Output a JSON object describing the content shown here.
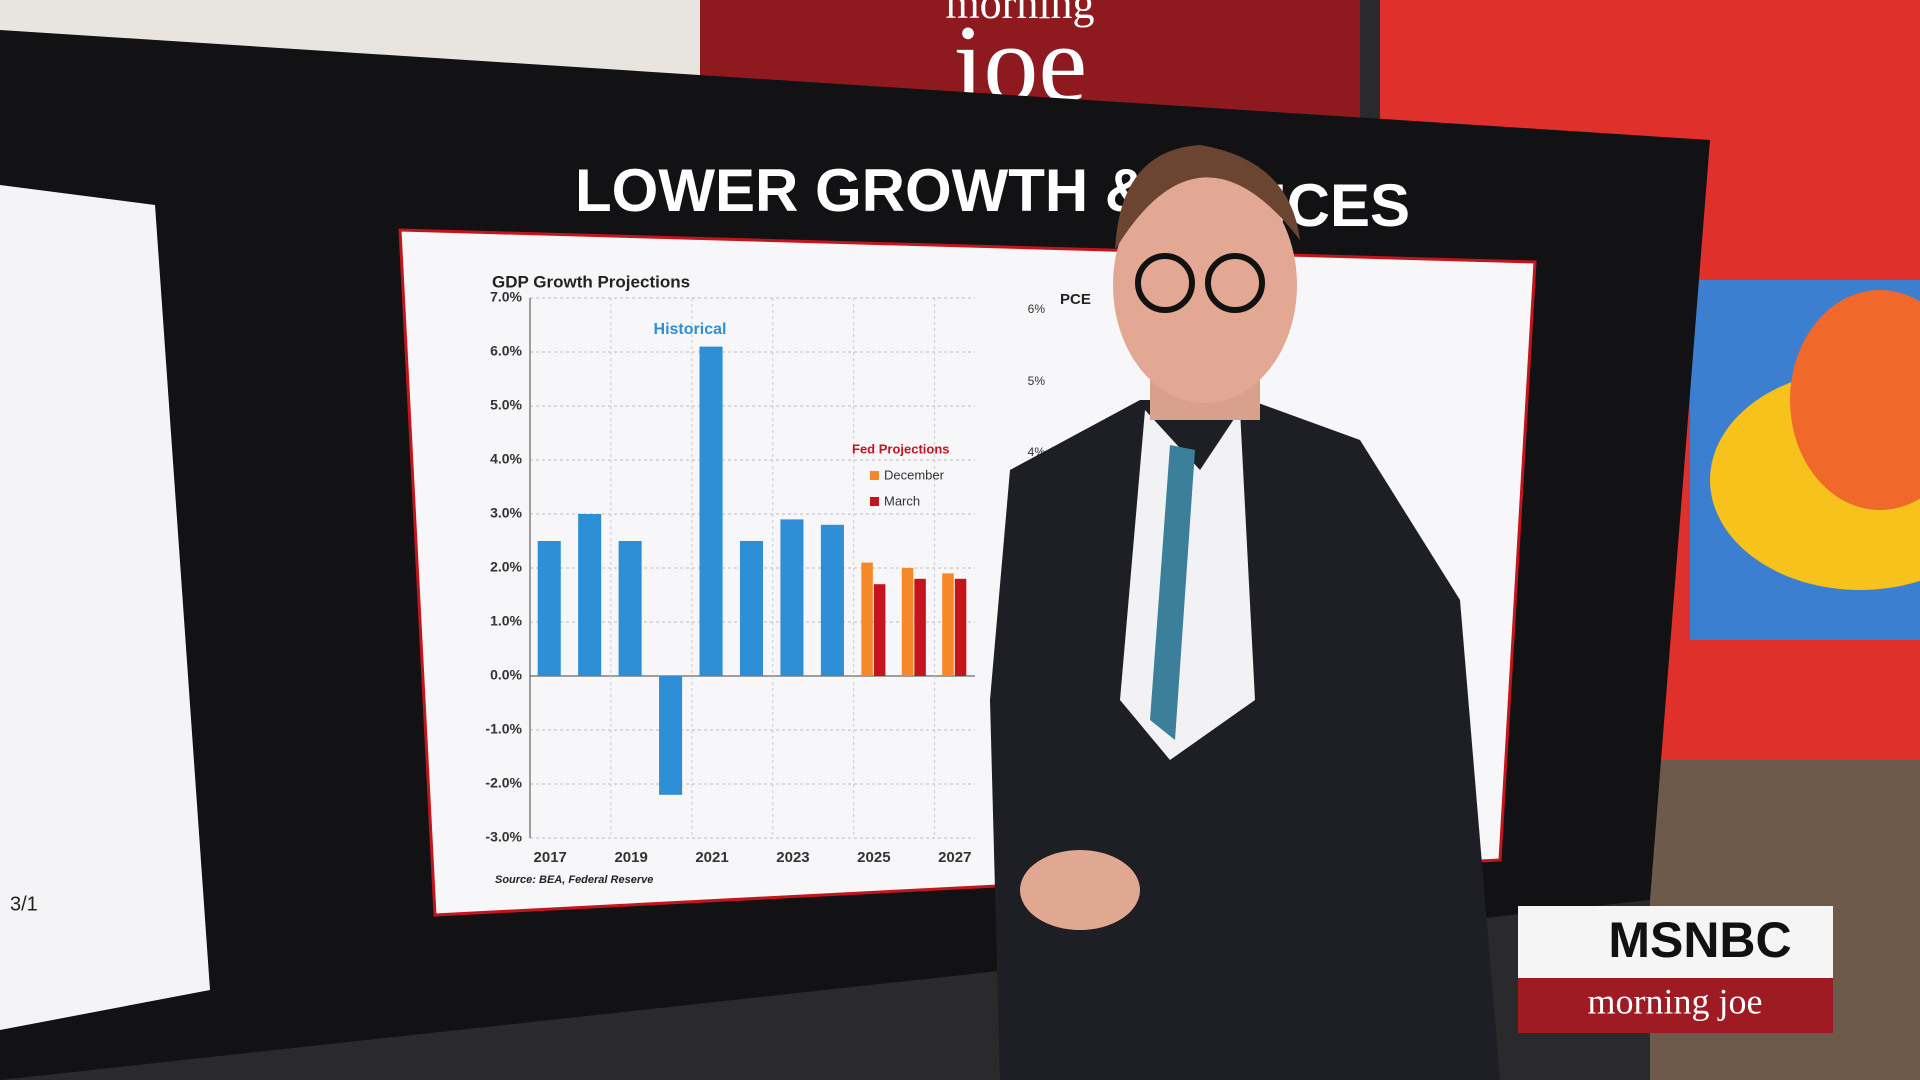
{
  "sign": {
    "top": "morning",
    "bottom": "joe"
  },
  "headline": {
    "left": "LOWER GROWTH & HIG",
    "right": "ICES"
  },
  "left_screen": {
    "date_label": "3/1"
  },
  "pce": {
    "title": "PCE",
    "ticks": [
      "6%",
      "5%",
      "4%"
    ]
  },
  "logo": {
    "network": "MSNBC",
    "show": "morning joe"
  },
  "chart_data": {
    "type": "bar",
    "title": "GDP Growth Projections",
    "categories": [
      "2017",
      null,
      "2019",
      null,
      "2021",
      null,
      "2023",
      null,
      "2025",
      null,
      "2027"
    ],
    "series": [
      {
        "name": "Historical",
        "color": "#2e8fd6",
        "values": [
          2.5,
          3.0,
          2.5,
          -2.2,
          6.1,
          2.5,
          2.9,
          2.8,
          null,
          null,
          null
        ]
      },
      {
        "name": "December",
        "color": "#f5892a",
        "values": [
          null,
          null,
          null,
          null,
          null,
          null,
          null,
          null,
          2.1,
          2.0,
          1.9
        ]
      },
      {
        "name": "March",
        "color": "#c4151c",
        "values": [
          null,
          null,
          null,
          null,
          null,
          null,
          null,
          null,
          1.7,
          1.8,
          1.8
        ]
      }
    ],
    "legend_title": "Fed Projections",
    "ylim": [
      -3,
      7
    ],
    "yticks": [
      {
        "value": -3,
        "label": "-3.0%"
      },
      {
        "value": -2,
        "label": "-2.0%"
      },
      {
        "value": -1,
        "label": "-1.0%"
      },
      {
        "value": 0,
        "label": "0.0%"
      },
      {
        "value": 1,
        "label": "1.0%"
      },
      {
        "value": 2,
        "label": "2.0%"
      },
      {
        "value": 3,
        "label": "3.0%"
      },
      {
        "value": 4,
        "label": "4.0%"
      },
      {
        "value": 5,
        "label": "5.0%"
      },
      {
        "value": 6,
        "label": "6.0%"
      },
      {
        "value": 7,
        "label": "7.0%"
      }
    ],
    "grid": true,
    "source": "Source: BEA, Federal Reserve"
  }
}
